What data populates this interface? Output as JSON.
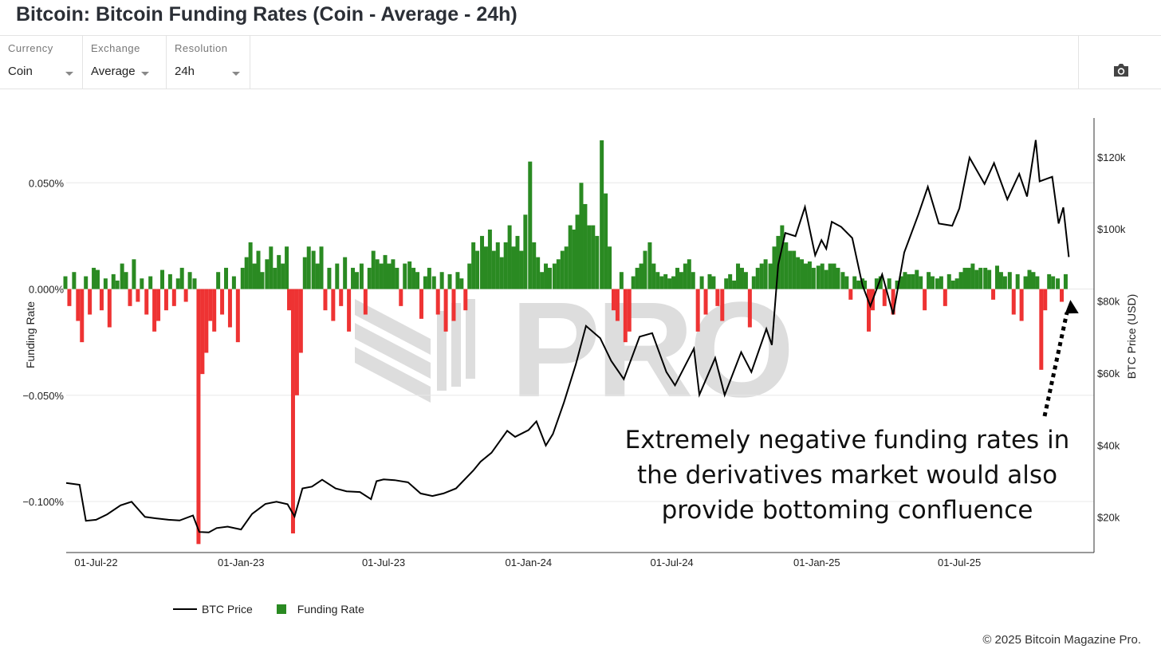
{
  "header": {
    "title": "Bitcoin: Bitcoin Funding Rates (Coin - Average - 24h)"
  },
  "controls": [
    {
      "label": "Currency",
      "value": "Coin"
    },
    {
      "label": "Exchange",
      "value": "Average"
    },
    {
      "label": "Resolution",
      "value": "24h"
    }
  ],
  "toolbar": {
    "screenshot_icon": "camera-icon"
  },
  "watermark": {
    "text": "PRO"
  },
  "annotation": {
    "lines": [
      "Extremely negative funding rates in",
      "the derivatives market would also",
      "provide bottoming confluence"
    ]
  },
  "footer": {
    "copyright": "© 2025 Bitcoin Magazine Pro."
  },
  "colors": {
    "positive": "#2a8a22",
    "negative": "#ee3333",
    "price": "#000000",
    "grid": "#e8e8e8"
  },
  "chart_data": {
    "type": "bar+line",
    "ylabel_left": "Funding Rate",
    "ylabel_right": "BTC Price (USD)",
    "xlim": [
      "2022-05-24",
      "2025-12-19"
    ],
    "ylim_left": [
      -0.124,
      0.0805
    ],
    "ylim_right": [
      10200,
      130800
    ],
    "x_ticks": [
      "01-Jul-22",
      "01-Jan-23",
      "01-Jul-23",
      "01-Jan-24",
      "01-Jul-24",
      "01-Jan-25",
      "01-Jul-25"
    ],
    "x_tick_dates": [
      "2022-07-01",
      "2023-01-01",
      "2023-07-01",
      "2024-01-01",
      "2024-07-01",
      "2025-01-01",
      "2025-07-01"
    ],
    "y_left_ticks": [
      {
        "value": 0.05,
        "label": "0.050%"
      },
      {
        "value": 0,
        "label": "0.000%"
      },
      {
        "value": -0.05,
        "label": "−0.050%"
      },
      {
        "value": -0.1,
        "label": "−0.100%"
      }
    ],
    "y_right_ticks": [
      {
        "value": 120000,
        "label": "$120k"
      },
      {
        "value": 100000,
        "label": "$100k"
      },
      {
        "value": 80000,
        "label": "$80k"
      },
      {
        "value": 60000,
        "label": "$60k"
      },
      {
        "value": 40000,
        "label": "$40k"
      },
      {
        "value": 20000,
        "label": "$20k"
      }
    ],
    "grid": true,
    "legend": {
      "placement": "bottom-left",
      "entries": [
        "BTC Price",
        "Funding Rate"
      ]
    },
    "btc_price": [
      [
        "2022-05-24",
        29500
      ],
      [
        "2022-06-10",
        29000
      ],
      [
        "2022-06-18",
        19000
      ],
      [
        "2022-07-01",
        19300
      ],
      [
        "2022-07-15",
        20800
      ],
      [
        "2022-08-01",
        23300
      ],
      [
        "2022-08-15",
        24300
      ],
      [
        "2022-09-01",
        20100
      ],
      [
        "2022-09-15",
        19700
      ],
      [
        "2022-10-01",
        19300
      ],
      [
        "2022-10-15",
        19100
      ],
      [
        "2022-11-01",
        20500
      ],
      [
        "2022-11-09",
        15900
      ],
      [
        "2022-11-21",
        15800
      ],
      [
        "2022-12-01",
        17000
      ],
      [
        "2022-12-15",
        17400
      ],
      [
        "2023-01-01",
        16600
      ],
      [
        "2023-01-15",
        20900
      ],
      [
        "2023-02-01",
        23700
      ],
      [
        "2023-02-15",
        24300
      ],
      [
        "2023-03-01",
        23600
      ],
      [
        "2023-03-10",
        20200
      ],
      [
        "2023-03-20",
        28000
      ],
      [
        "2023-04-01",
        28500
      ],
      [
        "2023-04-14",
        30400
      ],
      [
        "2023-05-01",
        28000
      ],
      [
        "2023-05-15",
        27200
      ],
      [
        "2023-06-01",
        27000
      ],
      [
        "2023-06-15",
        25000
      ],
      [
        "2023-06-22",
        30000
      ],
      [
        "2023-07-01",
        30500
      ],
      [
        "2023-07-15",
        30300
      ],
      [
        "2023-08-01",
        29700
      ],
      [
        "2023-08-17",
        26600
      ],
      [
        "2023-09-01",
        25900
      ],
      [
        "2023-09-15",
        26600
      ],
      [
        "2023-10-01",
        28000
      ],
      [
        "2023-10-23",
        33000
      ],
      [
        "2023-11-01",
        35400
      ],
      [
        "2023-11-15",
        37900
      ],
      [
        "2023-12-05",
        44000
      ],
      [
        "2023-12-15",
        42300
      ],
      [
        "2024-01-01",
        44200
      ],
      [
        "2024-01-11",
        46600
      ],
      [
        "2024-01-23",
        39900
      ],
      [
        "2024-02-01",
        43100
      ],
      [
        "2024-02-15",
        51900
      ],
      [
        "2024-03-01",
        62400
      ],
      [
        "2024-03-14",
        73100
      ],
      [
        "2024-04-01",
        69700
      ],
      [
        "2024-04-15",
        63400
      ],
      [
        "2024-05-01",
        58300
      ],
      [
        "2024-05-21",
        70100
      ],
      [
        "2024-06-06",
        71100
      ],
      [
        "2024-06-24",
        60300
      ],
      [
        "2024-07-05",
        56600
      ],
      [
        "2024-07-29",
        66800
      ],
      [
        "2024-08-05",
        54000
      ],
      [
        "2024-08-25",
        64200
      ],
      [
        "2024-09-06",
        53900
      ],
      [
        "2024-09-27",
        65800
      ],
      [
        "2024-10-10",
        60300
      ],
      [
        "2024-10-29",
        72300
      ],
      [
        "2024-11-05",
        67800
      ],
      [
        "2024-11-13",
        90000
      ],
      [
        "2024-11-22",
        98900
      ],
      [
        "2024-12-05",
        98000
      ],
      [
        "2024-12-17",
        106100
      ],
      [
        "2024-12-30",
        92700
      ],
      [
        "2025-01-07",
        96900
      ],
      [
        "2025-01-13",
        94500
      ],
      [
        "2025-01-20",
        102000
      ],
      [
        "2025-02-01",
        100600
      ],
      [
        "2025-02-15",
        97500
      ],
      [
        "2025-02-28",
        84400
      ],
      [
        "2025-03-10",
        78600
      ],
      [
        "2025-03-25",
        87400
      ],
      [
        "2025-04-08",
        76300
      ],
      [
        "2025-04-22",
        93500
      ],
      [
        "2025-05-10",
        104000
      ],
      [
        "2025-05-22",
        111700
      ],
      [
        "2025-06-05",
        101500
      ],
      [
        "2025-06-22",
        100900
      ],
      [
        "2025-07-01",
        105700
      ],
      [
        "2025-07-14",
        119800
      ],
      [
        "2025-08-02",
        112500
      ],
      [
        "2025-08-14",
        118300
      ],
      [
        "2025-08-31",
        108200
      ],
      [
        "2025-09-15",
        115300
      ],
      [
        "2025-09-25",
        109000
      ],
      [
        "2025-10-06",
        124700
      ],
      [
        "2025-10-11",
        113200
      ],
      [
        "2025-10-27",
        114500
      ],
      [
        "2025-11-04",
        101500
      ],
      [
        "2025-11-10",
        106000
      ],
      [
        "2025-11-17",
        92200
      ]
    ],
    "funding_rate_by_month": {
      "2022-05": [
        0.006,
        -0.008
      ],
      "2022-06": [
        0.008,
        -0.015,
        -0.025,
        0.006,
        -0.012,
        0.01
      ],
      "2022-07": [
        0.009,
        -0.01,
        0.005,
        -0.018,
        0.007,
        0.004
      ],
      "2022-08": [
        0.012,
        0.008,
        -0.008,
        0.014,
        -0.006,
        0.005
      ],
      "2022-09": [
        -0.012,
        0.006,
        -0.02,
        -0.015,
        0.009,
        -0.01
      ],
      "2022-10": [
        0.007,
        -0.008,
        0.005,
        0.01,
        -0.006,
        0.008
      ],
      "2022-11": [
        0.005,
        -0.12,
        -0.04,
        -0.03,
        -0.015,
        -0.02
      ],
      "2022-12": [
        0.008,
        -0.012,
        0.01,
        -0.018,
        0.006,
        -0.025
      ],
      "2023-01": [
        0.01,
        0.015,
        0.022,
        0.012,
        0.018,
        0.008
      ],
      "2023-02": [
        0.014,
        0.02,
        0.01,
        0.016,
        0.012,
        0.02
      ],
      "2023-03": [
        -0.01,
        -0.115,
        -0.05,
        -0.03,
        0.015,
        0.02
      ],
      "2023-04": [
        0.018,
        0.012,
        0.02,
        -0.01,
        0.01,
        -0.015
      ],
      "2023-05": [
        0.012,
        -0.008,
        0.015,
        -0.02,
        0.01,
        0.008
      ],
      "2023-06": [
        0.012,
        -0.012,
        0.01,
        0.018,
        0.014,
        0.012
      ],
      "2023-07": [
        0.016,
        0.012,
        0.014,
        0.01,
        -0.008,
        0.012
      ],
      "2023-08": [
        0.013,
        0.01,
        0.008,
        -0.014,
        0.006,
        0.01
      ],
      "2023-09": [
        0.006,
        -0.012,
        0.008,
        -0.02,
        0.007,
        -0.015
      ],
      "2023-10": [
        0.008,
        0.005,
        -0.01,
        0.012,
        0.022,
        0.018
      ],
      "2023-11": [
        0.025,
        0.02,
        0.028,
        0.018,
        0.022,
        0.015
      ],
      "2023-12": [
        0.022,
        0.03,
        0.02,
        0.025,
        0.018,
        0.035
      ],
      "2024-01": [
        0.06,
        0.022,
        0.015,
        0.008,
        0.012,
        0.01
      ],
      "2024-02": [
        0.012,
        0.014,
        0.018,
        0.02,
        0.03,
        0.028
      ],
      "2024-03": [
        0.035,
        0.05,
        0.04,
        0.03,
        0.03,
        0.025
      ],
      "2024-04": [
        0.07,
        0.045,
        0.02,
        -0.01,
        -0.015,
        0.008
      ],
      "2024-05": [
        -0.025,
        -0.02,
        0.006,
        0.01,
        0.012,
        0.018
      ],
      "2024-06": [
        0.022,
        0.012,
        0.008,
        0.006,
        0.007,
        0.005
      ],
      "2024-07": [
        0.006,
        0.01,
        0.008,
        0.012,
        0.014,
        0.008
      ],
      "2024-08": [
        -0.02,
        0.006,
        -0.012,
        0.007,
        0.006,
        -0.008
      ],
      "2024-09": [
        -0.015,
        0.005,
        0.007,
        0.004,
        0.012,
        0.01
      ],
      "2024-10": [
        0.008,
        -0.018,
        0.006,
        0.01,
        0.012,
        0.014
      ],
      "2024-11": [
        0.012,
        0.02,
        0.025,
        0.03,
        0.022,
        0.018
      ],
      "2024-12": [
        0.018,
        0.015,
        0.014,
        0.012,
        0.013,
        0.01
      ],
      "2025-01": [
        0.011,
        0.012,
        0.009,
        0.012,
        0.012,
        0.01
      ],
      "2025-02": [
        0.008,
        0.006,
        -0.005,
        0.006,
        0.004,
        0.005
      ],
      "2025-03": [
        0.004,
        -0.02,
        -0.01,
        0.005,
        0.006,
        -0.008
      ],
      "2025-04": [
        0.005,
        -0.012,
        0.004,
        0.006,
        0.008,
        0.007
      ],
      "2025-05": [
        0.007,
        0.009,
        0.006,
        -0.01,
        0.008,
        0.006
      ],
      "2025-06": [
        0.005,
        0.006,
        -0.008,
        0.007,
        0.004,
        0.005
      ],
      "2025-07": [
        0.008,
        0.01,
        0.01,
        0.012,
        0.009,
        0.01
      ],
      "2025-08": [
        0.01,
        0.009,
        -0.005,
        0.011,
        0.008,
        0.006
      ],
      "2025-09": [
        0.008,
        -0.012,
        0.007,
        -0.015,
        0.006,
        0.009
      ],
      "2025-10": [
        0.008,
        0.006,
        -0.038,
        -0.01,
        0.007,
        0.006
      ],
      "2025-11": [
        0.005,
        -0.006,
        0.007
      ]
    }
  }
}
